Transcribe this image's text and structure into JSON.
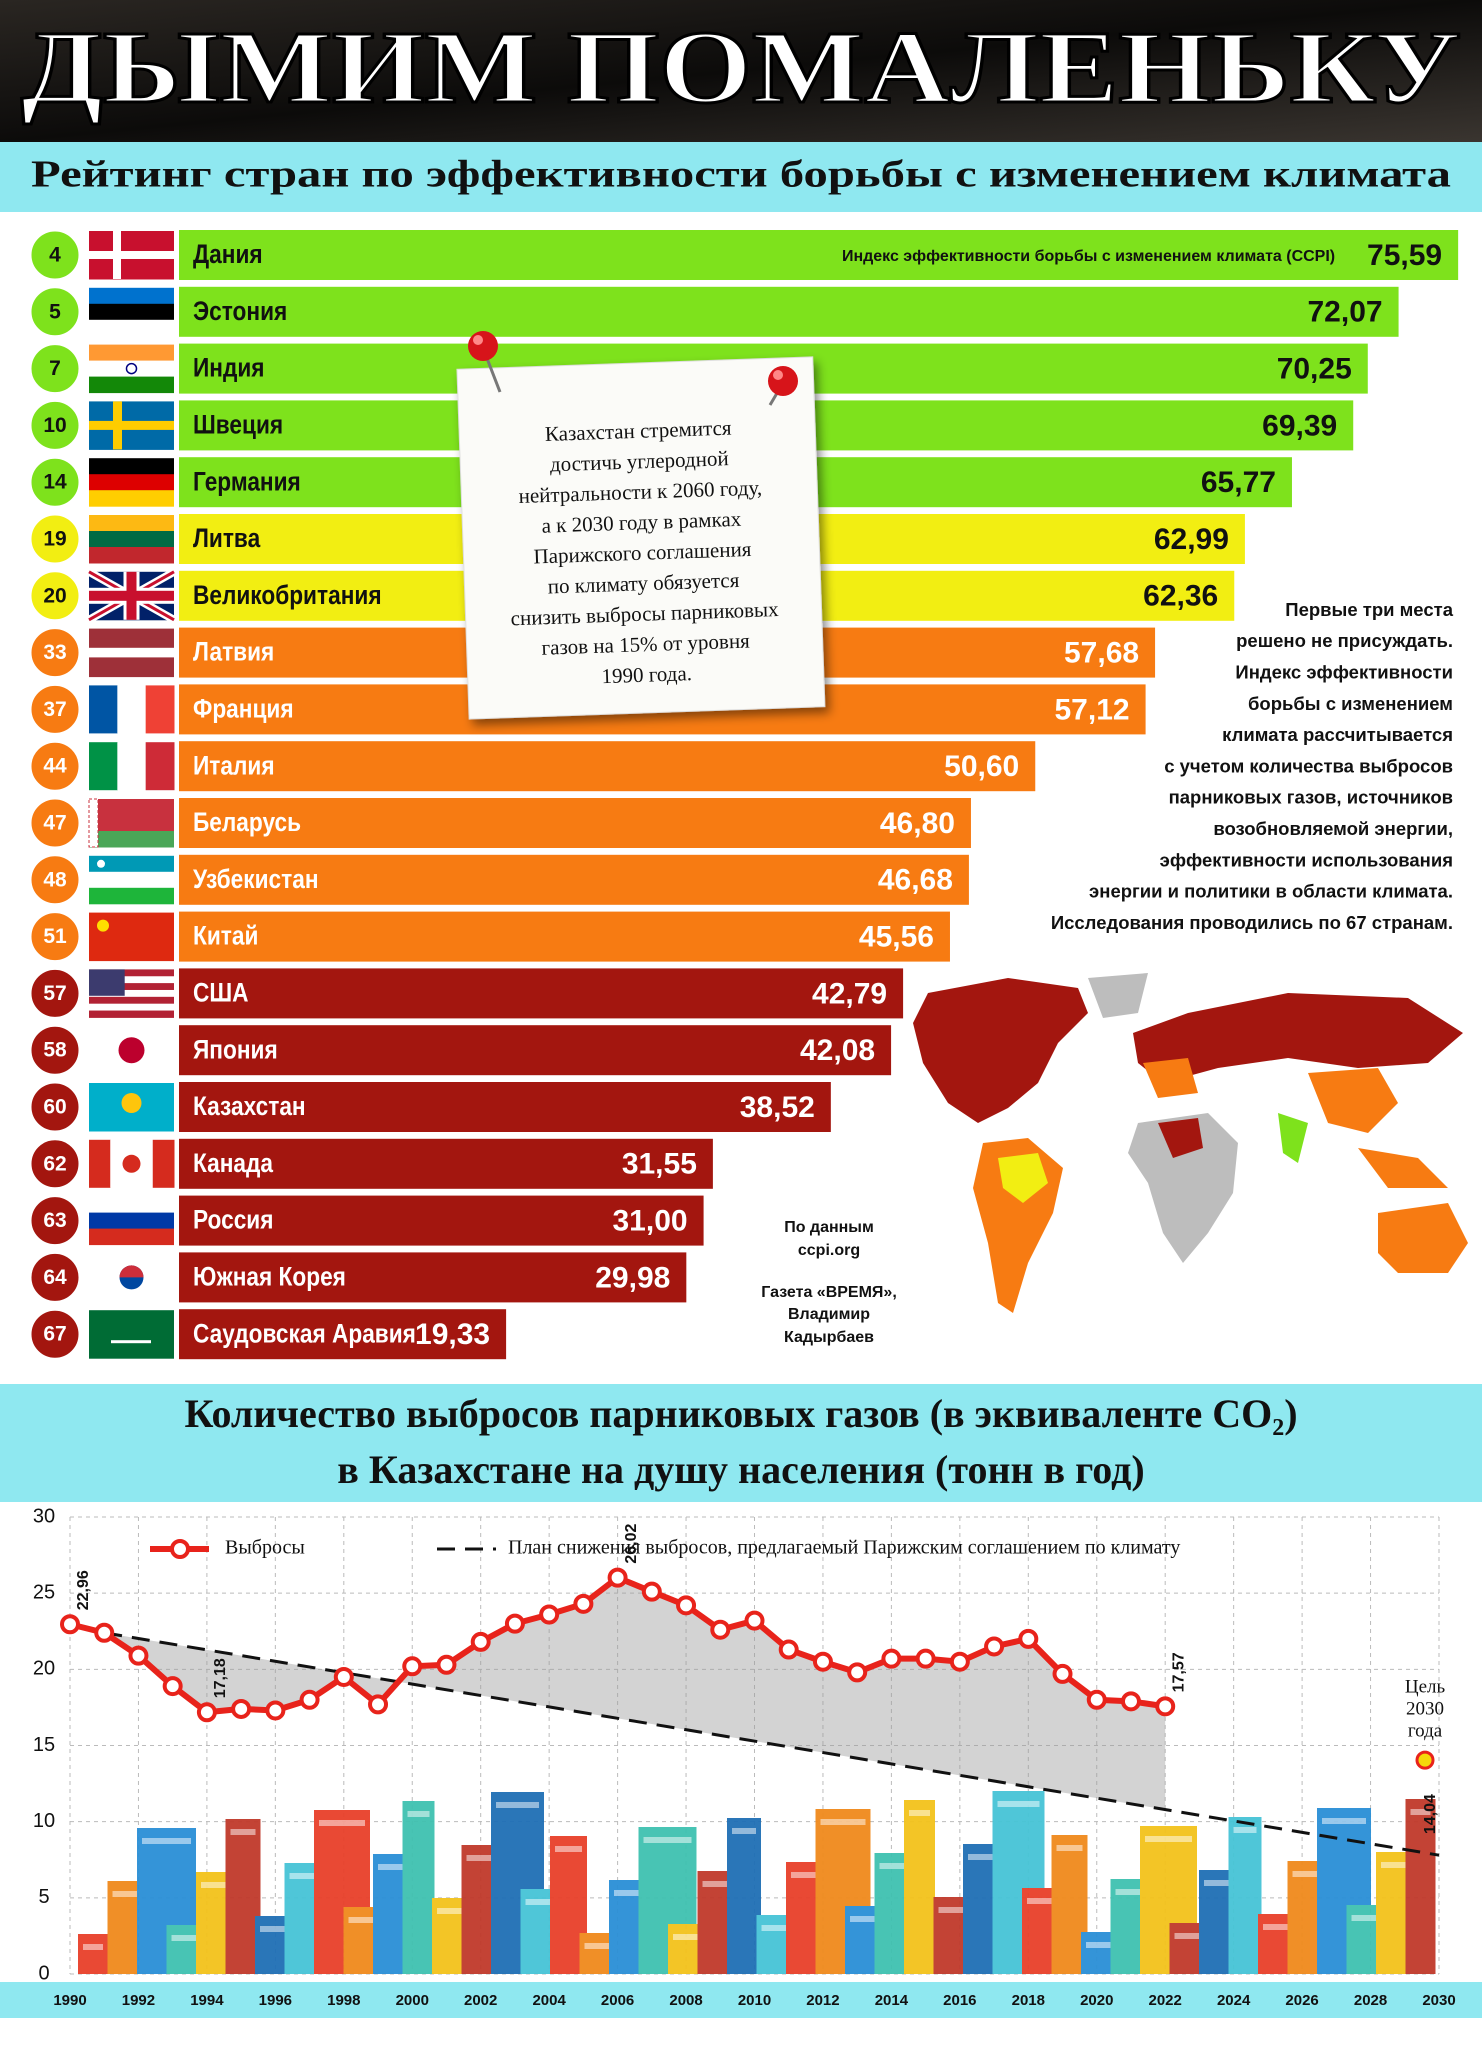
{
  "header": {
    "title": "ДЫМИМ ПОМАЛЕНЬКУ",
    "subtitle": "Рейтинг стран по эффективности борьбы с изменением климата"
  },
  "note": {
    "lines": [
      "Казахстан стремится",
      "достичь углеродной",
      "нейтральности к 2060 году,",
      "а к 2030 году в рамках",
      "Парижского соглашения",
      "по климату обязуется",
      "снизить выбросы парниковых",
      "газов на 15% от уровня",
      "1990 года."
    ]
  },
  "side_note": {
    "lines": [
      "Первые три места",
      "решено не присуждать.",
      "Индекс эффективности",
      "борьбы с изменением",
      "климата рассчитывается",
      "с учетом количества выбросов",
      "парниковых газов, источников",
      "возобновляемой энергии,",
      "эффективности использования",
      "энергии и политики в области климата.",
      "Исследования проводились по 67 странам."
    ]
  },
  "source": {
    "lines": [
      "По данным",
      "ccpi.org",
      "Газета «ВРЕМЯ»,",
      "Владимир",
      "Кадырбаев"
    ]
  },
  "chart_data": [
    {
      "type": "bar",
      "orientation": "horizontal",
      "value_label_title": "Индекс эффективности борьбы с изменением климата (CCPI)",
      "ranks": [
        4,
        5,
        7,
        10,
        14,
        19,
        20,
        33,
        37,
        44,
        47,
        48,
        51,
        57,
        58,
        60,
        62,
        63,
        64,
        67
      ],
      "categories": [
        "Дания",
        "Эстония",
        "Индия",
        "Швеция",
        "Германия",
        "Литва",
        "Великобритания",
        "Латвия",
        "Франция",
        "Италия",
        "Беларусь",
        "Узбекистан",
        "Китай",
        "США",
        "Япония",
        "Казахстан",
        "Канада",
        "Россия",
        "Южная Корея",
        "Саудовская Аравия"
      ],
      "values": [
        75.59,
        72.07,
        70.25,
        69.39,
        65.77,
        62.99,
        62.36,
        57.68,
        57.12,
        50.6,
        46.8,
        46.68,
        45.56,
        42.79,
        42.08,
        38.52,
        31.55,
        31.0,
        29.98,
        19.33
      ],
      "value_labels": [
        "75,59",
        "72,07",
        "70,25",
        "69,39",
        "65,77",
        "62,99",
        "62,36",
        "57,68",
        "57,12",
        "50,60",
        "46,80",
        "46,68",
        "45,56",
        "42,79",
        "42,08",
        "38,52",
        "31,55",
        "31,00",
        "29,98",
        "19,33"
      ],
      "colors": [
        "#7ee21c",
        "#7ee21c",
        "#7ee21c",
        "#7ee21c",
        "#7ee21c",
        "#f2ee12",
        "#f2ee12",
        "#f77b12",
        "#f77b12",
        "#f77b12",
        "#f77b12",
        "#f77b12",
        "#f77b12",
        "#a3160f",
        "#a3160f",
        "#a3160f",
        "#a3160f",
        "#a3160f",
        "#a3160f",
        "#a3160f"
      ],
      "xlim": [
        0,
        77
      ]
    },
    {
      "type": "line",
      "title": [
        "Количество выбросов парниковых газов (в эквиваленте CO₂)",
        "в Казахстане на душу населения (тонн в год)"
      ],
      "x": [
        1990,
        1991,
        1992,
        1993,
        1994,
        1995,
        1996,
        1997,
        1998,
        1999,
        2000,
        2001,
        2002,
        2003,
        2004,
        2005,
        2006,
        2007,
        2008,
        2009,
        2010,
        2011,
        2012,
        2013,
        2014,
        2015,
        2016,
        2017,
        2018,
        2019,
        2020,
        2021,
        2022
      ],
      "series": [
        {
          "name": "Выбросы",
          "color": "#e8231b",
          "values": [
            22.96,
            22.4,
            20.9,
            18.9,
            17.18,
            17.4,
            17.3,
            18.0,
            19.5,
            17.7,
            20.2,
            20.3,
            21.8,
            23.0,
            23.6,
            24.3,
            26.02,
            25.1,
            24.2,
            22.6,
            23.2,
            21.3,
            20.5,
            19.8,
            20.7,
            20.7,
            20.5,
            21.5,
            22.0,
            19.7,
            18.0,
            17.9,
            17.57
          ],
          "value_labels": [
            "22,96",
            null,
            null,
            null,
            "17,18",
            null,
            null,
            null,
            null,
            null,
            null,
            null,
            null,
            null,
            null,
            null,
            "26,02",
            null,
            null,
            null,
            null,
            null,
            null,
            null,
            null,
            null,
            null,
            null,
            null,
            null,
            null,
            null,
            "17,57"
          ]
        },
        {
          "name": "План снижения выбросов, предлагаемый Парижским соглашением по климату",
          "color": "#111111",
          "dashed": true,
          "x": [
            1991,
            2030
          ],
          "values": [
            22.4,
            7.8
          ]
        }
      ],
      "target": {
        "lines": [
          "Цель",
          "2030",
          "года"
        ],
        "x": 2030,
        "value": 14.04,
        "value_label": "14,04",
        "color": "#f5d90a"
      },
      "xlim": [
        1990,
        2030
      ],
      "ylim": [
        0,
        30
      ],
      "xticks": [
        1990,
        1992,
        1994,
        1996,
        1998,
        2000,
        2002,
        2004,
        2006,
        2008,
        2010,
        2012,
        2014,
        2016,
        2018,
        2020,
        2022,
        2024,
        2026,
        2028,
        2030
      ],
      "yticks": [
        0,
        5,
        10,
        15,
        20,
        25,
        30
      ],
      "grid": true
    }
  ]
}
